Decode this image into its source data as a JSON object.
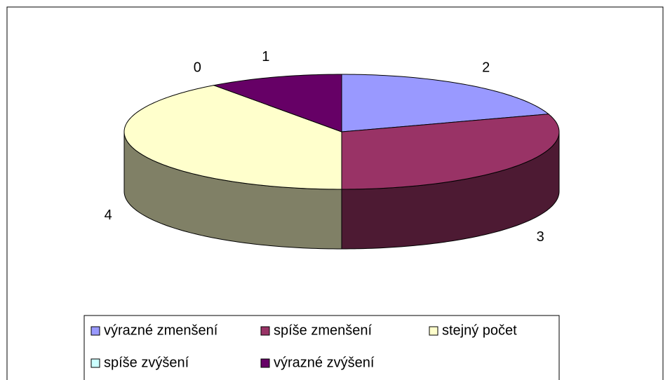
{
  "chart_data": {
    "type": "pie3d",
    "categories": [
      "výrazné zmenšení",
      "spíše zmenšení",
      "stejný počet",
      "spíše zvýšení",
      "výrazné zvýšení"
    ],
    "values": [
      2,
      3,
      4,
      0,
      1
    ],
    "colors": [
      "#9999ff",
      "#993366",
      "#ffffcc",
      "#ccffff",
      "#660066"
    ],
    "legend": "bottom"
  }
}
